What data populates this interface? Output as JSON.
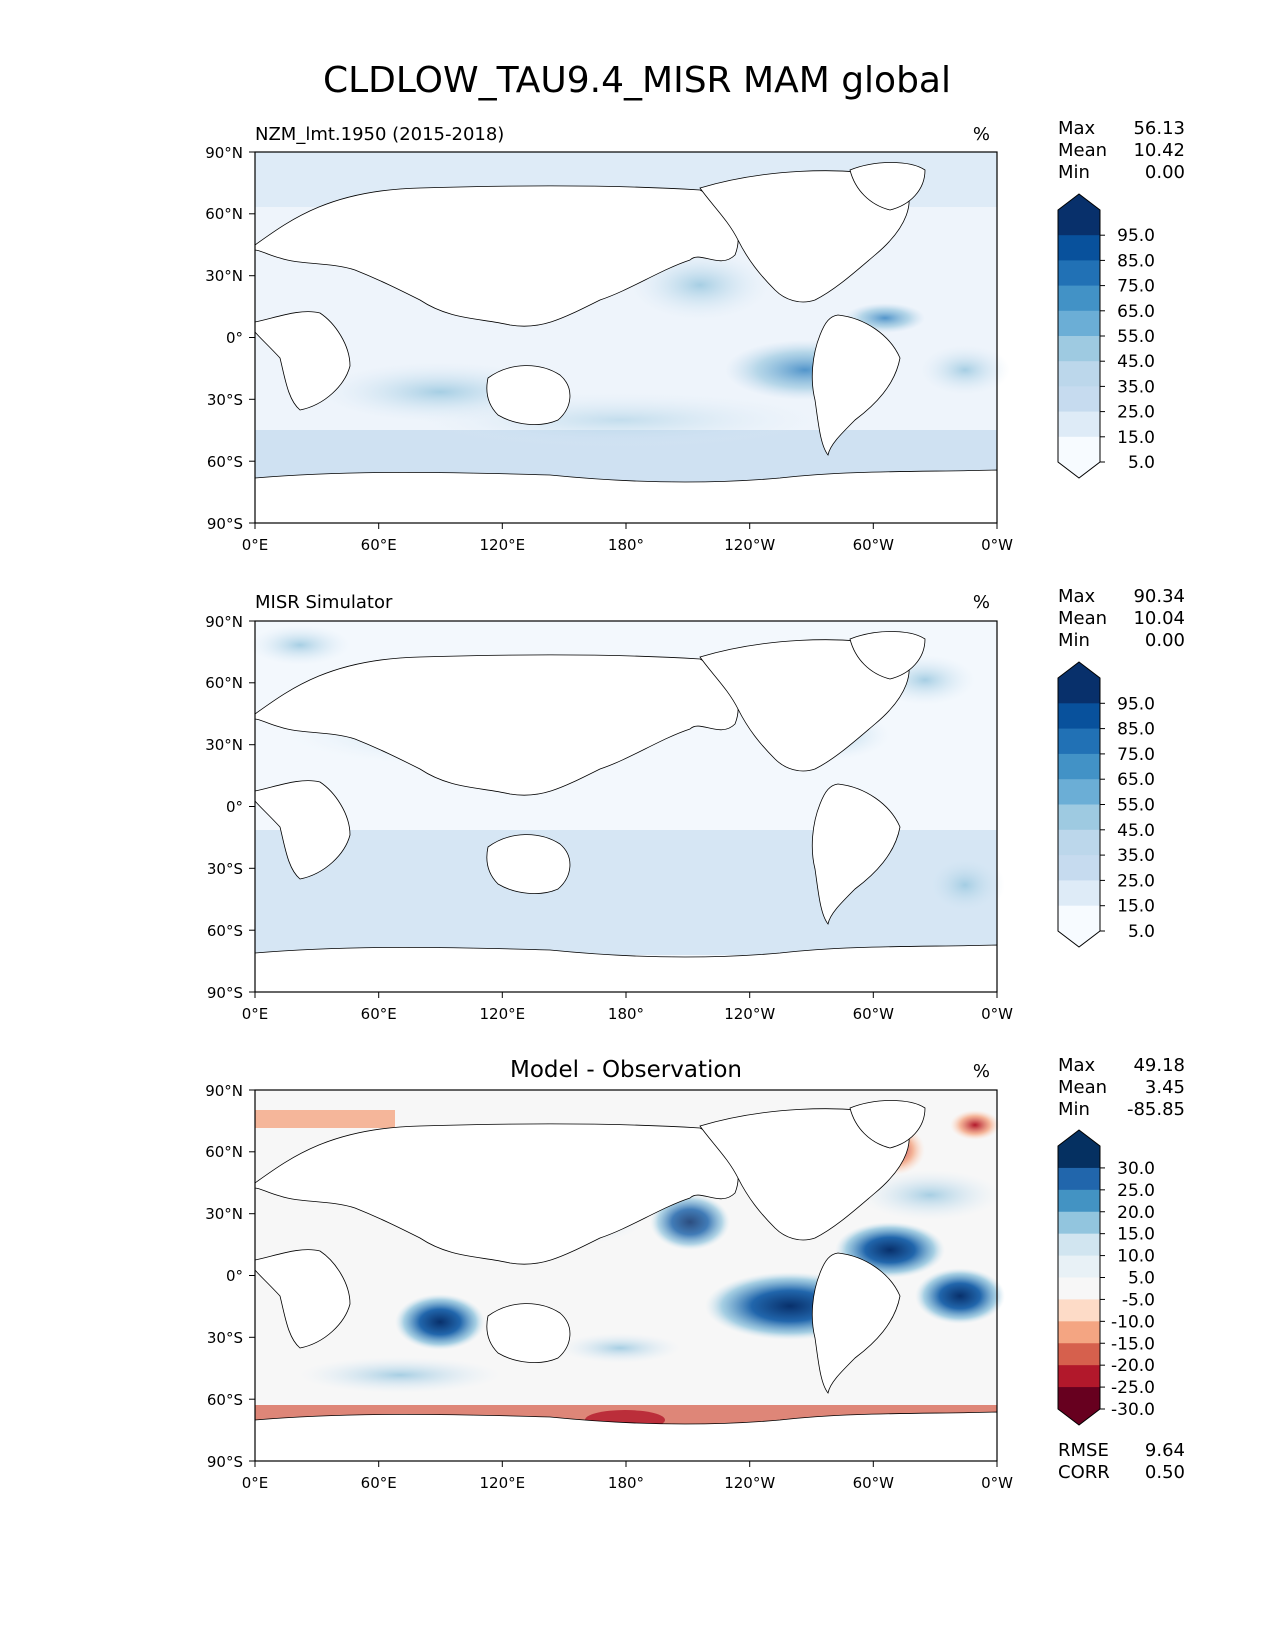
{
  "chart_data": {
    "type": "heatmap",
    "title": "CLDLOW_TAU9.4_MISR MAM global",
    "x_ticks": [
      "0°E",
      "60°E",
      "120°E",
      "180°",
      "120°W",
      "60°W",
      "0°W"
    ],
    "y_ticks": [
      "90°N",
      "60°N",
      "30°N",
      "0°",
      "30°S",
      "60°S",
      "90°S"
    ],
    "xlim": [
      0,
      360
    ],
    "ylim": [
      -90,
      90
    ],
    "panels": [
      {
        "title": "NZM_lmt.1950 (2015-2018)",
        "title_position": "left",
        "units": "%",
        "stats": [
          {
            "label": "Max",
            "value": "56.13"
          },
          {
            "label": "Mean",
            "value": "10.42"
          },
          {
            "label": "Min",
            "value": "0.00"
          }
        ],
        "colorbar": {
          "ticks": [
            "95.0",
            "85.0",
            "75.0",
            "65.0",
            "55.0",
            "45.0",
            "35.0",
            "25.0",
            "15.0",
            "5.0"
          ],
          "colors": [
            "#08306b",
            "#08519c",
            "#2171b5",
            "#4292c6",
            "#6baed6",
            "#9ecae1",
            "#bcd7eb",
            "#c6dbef",
            "#deebf7",
            "#f7fbff"
          ]
        }
      },
      {
        "title": "MISR Simulator",
        "title_position": "left",
        "units": "%",
        "stats": [
          {
            "label": "Max",
            "value": "90.34"
          },
          {
            "label": "Mean",
            "value": "10.04"
          },
          {
            "label": "Min",
            "value": "0.00"
          }
        ],
        "colorbar": {
          "ticks": [
            "95.0",
            "85.0",
            "75.0",
            "65.0",
            "55.0",
            "45.0",
            "35.0",
            "25.0",
            "15.0",
            "5.0"
          ],
          "colors": [
            "#08306b",
            "#08519c",
            "#2171b5",
            "#4292c6",
            "#6baed6",
            "#9ecae1",
            "#bcd7eb",
            "#c6dbef",
            "#deebf7",
            "#f7fbff"
          ]
        }
      },
      {
        "title": "Model - Observation",
        "title_position": "center",
        "units": "%",
        "stats": [
          {
            "label": "Max",
            "value": "49.18"
          },
          {
            "label": "Mean",
            "value": "3.45"
          },
          {
            "label": "Min",
            "value": "-85.85"
          }
        ],
        "bottom_stats": [
          {
            "label": "RMSE",
            "value": "9.64"
          },
          {
            "label": "CORR",
            "value": "0.50"
          }
        ],
        "colorbar": {
          "ticks": [
            "30.0",
            "25.0",
            "20.0",
            "15.0",
            "10.0",
            "5.0",
            "-5.0",
            "-10.0",
            "-15.0",
            "-20.0",
            "-25.0",
            "-30.0"
          ],
          "colors": [
            "#053061",
            "#2166ac",
            "#4393c3",
            "#92c5de",
            "#d1e5f0",
            "#e8f1f6",
            "#f7f7f7",
            "#fddbc7",
            "#f4a582",
            "#d6604d",
            "#b2182b",
            "#67001f"
          ]
        }
      }
    ]
  }
}
